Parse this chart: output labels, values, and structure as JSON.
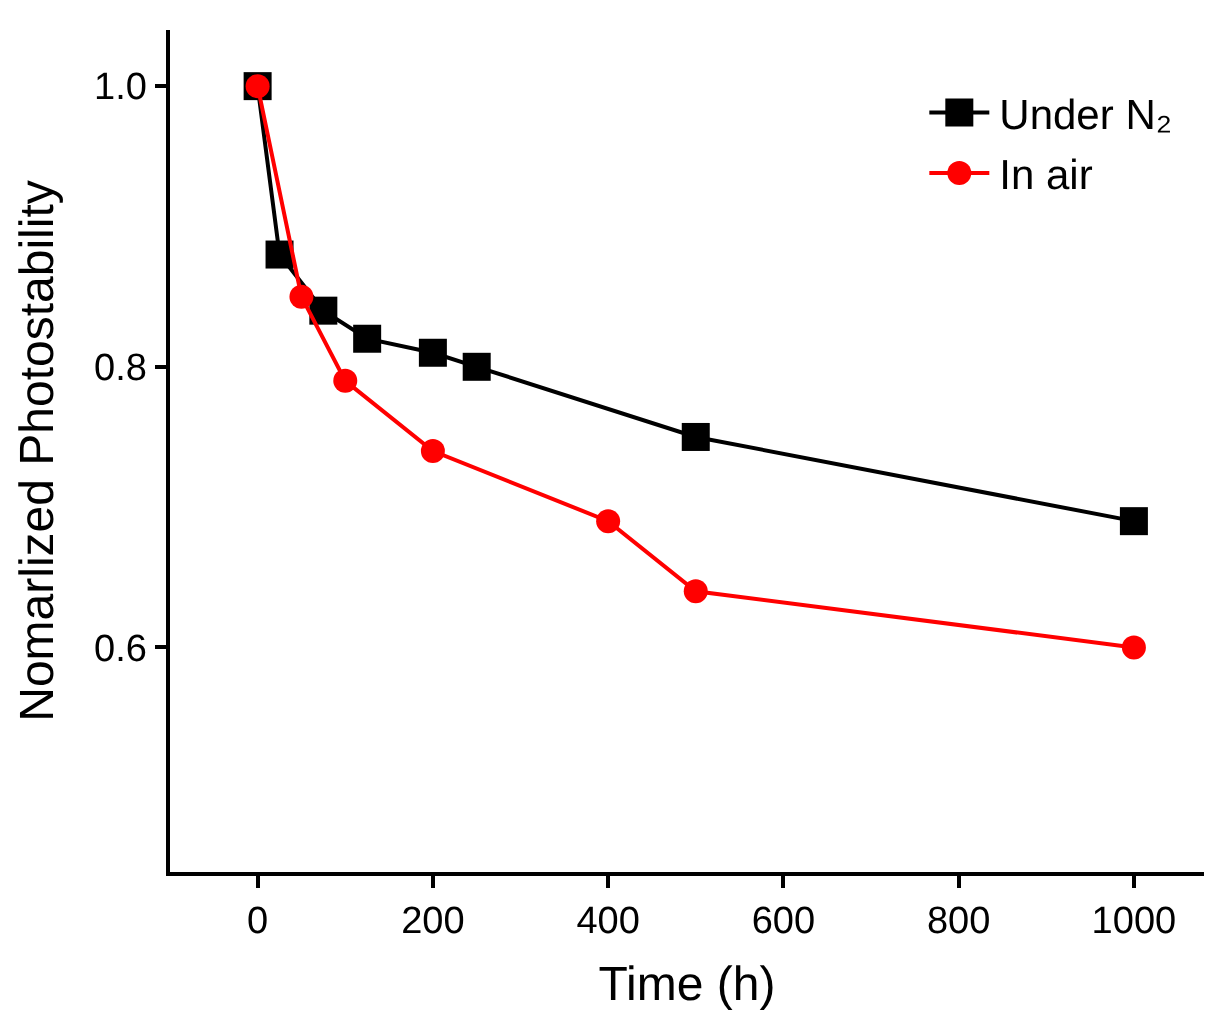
{
  "chart_data": {
    "type": "line",
    "xlabel": "Time (h)",
    "ylabel": "Nomarlized Photostability",
    "xlim": [
      -100,
      1080
    ],
    "xticks": [
      0,
      200,
      400,
      600,
      800,
      1000
    ],
    "ylim": [
      0.44,
      1.04
    ],
    "yticks": [
      {
        "value": 0.6,
        "label": "0.6"
      },
      {
        "value": 0.8,
        "label": "0.8"
      },
      {
        "value": 1.0,
        "label": "1.0"
      }
    ],
    "legend": "top right",
    "grid": false,
    "series": [
      {
        "name": "Under N₂",
        "color": "#000000",
        "marker": "square",
        "x": [
          0,
          25,
          75,
          125,
          200,
          250,
          500,
          1000
        ],
        "values": [
          1.0,
          0.88,
          0.84,
          0.82,
          0.81,
          0.8,
          0.75,
          0.69
        ]
      },
      {
        "name": "In air",
        "color": "#ff0000",
        "marker": "circle",
        "x": [
          0,
          50,
          100,
          200,
          400,
          500,
          1000
        ],
        "values": [
          1.0,
          0.85,
          0.79,
          0.74,
          0.69,
          0.64,
          0.6
        ]
      }
    ]
  }
}
